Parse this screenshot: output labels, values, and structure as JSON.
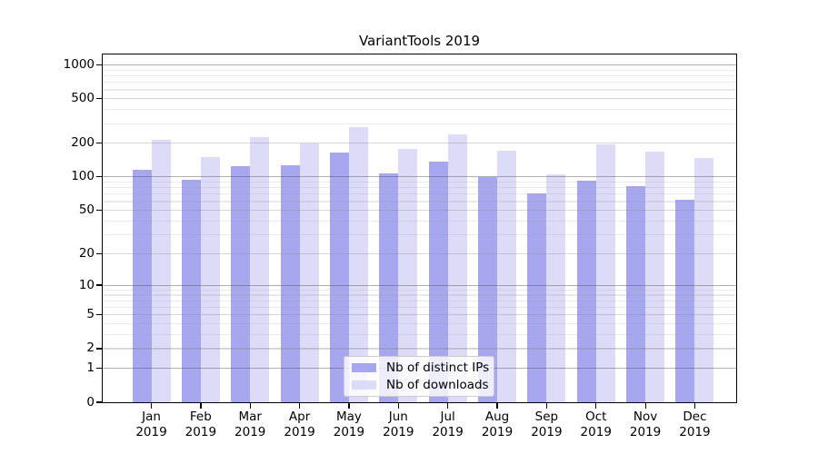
{
  "title": "VariantTools 2019",
  "colors": {
    "distinct_ips": "#a7a7f0",
    "downloads": "#dcdcf8",
    "grid_major": "rgba(80,80,80,0.45)",
    "grid_labeled": "rgba(140,140,140,0.35)",
    "grid_minor": "rgba(160,160,160,0.22)"
  },
  "legend": {
    "items": [
      {
        "label": "Nb of distinct IPs",
        "color_key": "distinct_ips"
      },
      {
        "label": "Nb of downloads",
        "color_key": "downloads"
      }
    ]
  },
  "chart_data": {
    "type": "bar",
    "title": "VariantTools 2019",
    "categories": [
      "Jan",
      "Feb",
      "Mar",
      "Apr",
      "May",
      "Jun",
      "Jul",
      "Aug",
      "Sep",
      "Oct",
      "Nov",
      "Dec"
    ],
    "category_year": "2019",
    "series": [
      {
        "name": "Nb of distinct IPs",
        "color_key": "distinct_ips",
        "values": [
          116,
          94,
          124,
          126,
          166,
          107,
          138,
          100,
          71,
          93,
          82,
          62
        ]
      },
      {
        "name": "Nb of downloads",
        "color_key": "downloads",
        "values": [
          213,
          149,
          226,
          200,
          281,
          177,
          241,
          171,
          106,
          197,
          168,
          147
        ]
      }
    ],
    "yscale": "log1p",
    "ylim": [
      0,
      1250
    ],
    "y_ticks": [
      0,
      1,
      2,
      5,
      10,
      20,
      50,
      100,
      200,
      500,
      1000
    ],
    "y_major_gridlines": [
      1,
      10,
      100,
      1000
    ],
    "y_labeled_gridlines": [
      2,
      5,
      20,
      50,
      200,
      500
    ],
    "y_minor_gridlines": [
      3,
      4,
      6,
      7,
      8,
      9,
      30,
      40,
      60,
      70,
      80,
      90,
      300,
      400,
      600,
      700,
      800,
      900
    ],
    "grid": true,
    "legend_position": "lower-center"
  }
}
